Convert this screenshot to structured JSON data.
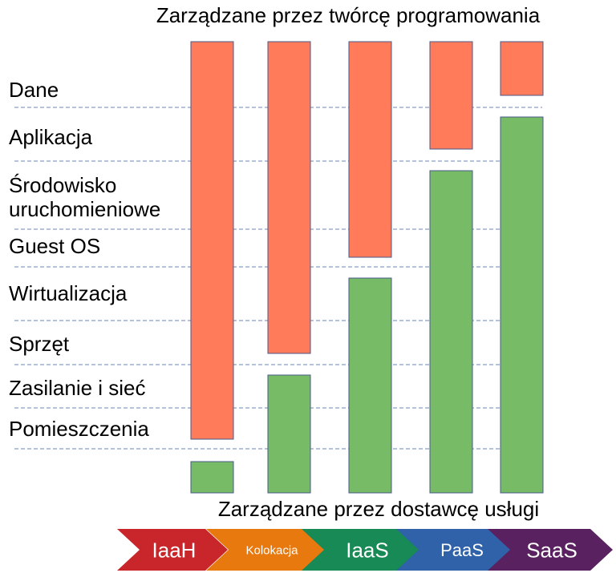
{
  "top_title": "Zarządzane przez twórcę programowania",
  "bottom_title": "Zarządzane przez dostawcę usługi",
  "layers": [
    {
      "lines": [
        "Dane"
      ]
    },
    {
      "lines": [
        "Aplikacja"
      ]
    },
    {
      "lines": [
        "Środowisko",
        "uruchomieniowe"
      ]
    },
    {
      "lines": [
        "Guest OS"
      ]
    },
    {
      "lines": [
        "Wirtualizacja"
      ]
    },
    {
      "lines": [
        "Sprzęt"
      ]
    },
    {
      "lines": [
        "Zasilanie i sieć"
      ]
    },
    {
      "lines": [
        "Pomieszczenia"
      ]
    }
  ],
  "models": [
    {
      "label": "IaaH",
      "color": "#c8262a",
      "developer_managed_layers": 8
    },
    {
      "label": "Kolokacja",
      "color": "#e8790f",
      "developer_managed_layers": 6
    },
    {
      "label": "IaaS",
      "color": "#178a55",
      "developer_managed_layers": 4
    },
    {
      "label": "PaaS",
      "color": "#2f62a8",
      "developer_managed_layers": 2
    },
    {
      "label": "SaaS",
      "color": "#5a2160",
      "developer_managed_layers": 1
    }
  ],
  "colors": {
    "developer": "#ff7b5a",
    "provider": "#77bb66",
    "separator": "#6d84b4"
  }
}
